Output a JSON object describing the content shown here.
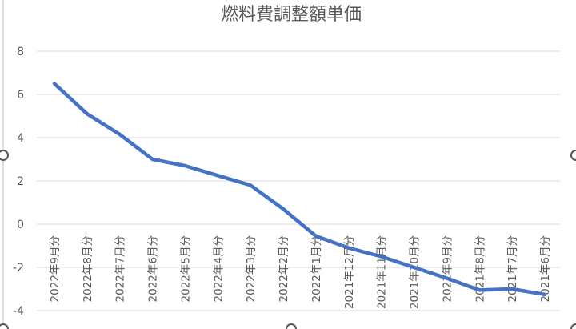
{
  "chart_data": {
    "type": "line",
    "title": "燃料費調整額単価",
    "xlabel": "",
    "ylabel": "",
    "categories": [
      "2022年9月分",
      "2022年8月分",
      "2022年7月分",
      "2022年6月分",
      "2022年5月分",
      "2022年4月分",
      "2022年3月分",
      "2022年2月分",
      "2022年1月分",
      "2021年12月分",
      "2021年11月分",
      "2021年10月分",
      "2021年9月分",
      "2021年8月分",
      "2021年7月分",
      "2021年6月分"
    ],
    "series": [
      {
        "values": [
          6.5,
          5.1,
          4.15,
          3.0,
          2.7,
          2.25,
          1.8,
          0.7,
          -0.55,
          -1.1,
          -1.5,
          -2.0,
          -2.5,
          -3.05,
          -3.0,
          -3.25
        ]
      }
    ],
    "yticks": [
      -4,
      -2,
      0,
      2,
      4,
      6,
      8
    ],
    "ylim": [
      -4,
      8
    ],
    "grid": true,
    "legend": "none",
    "line_color": "#4472c4"
  }
}
